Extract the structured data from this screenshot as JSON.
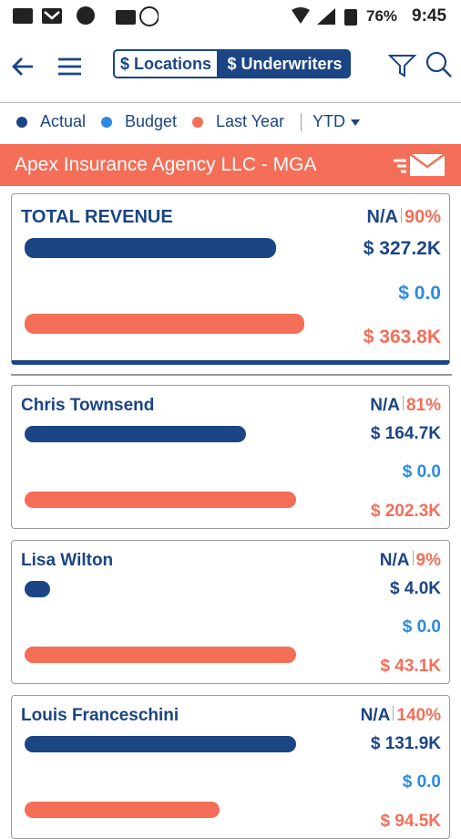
{
  "status_bar": {
    "battery": "76%",
    "time": "9:45"
  },
  "header": {
    "tabs": [
      "$ Locations",
      "$ Underwriters"
    ]
  },
  "legend": {
    "items": [
      "Actual",
      "Budget",
      "Last Year"
    ],
    "period": "YTD"
  },
  "banner": {
    "title": "Apex Insurance Agency LLC - MGA"
  },
  "total": {
    "title": "TOTAL REVENUE",
    "budget_ratio": "N/A",
    "ratio": "90%",
    "values": [
      327.2,
      0,
      363.8
    ],
    "value_labels": [
      "$ 327.2K",
      "$ 0.0",
      "$ 363.8K"
    ]
  },
  "underwriters": [
    {
      "title": "Chris Townsend",
      "budget_ratio": "N/A",
      "ratio": "81%",
      "values": [
        164.7,
        0,
        202.3
      ],
      "value_labels": [
        "$ 164.7K",
        "$ 0.0",
        "$ 202.3K"
      ]
    },
    {
      "title": "Lisa Wilton",
      "budget_ratio": "N/A",
      "ratio": "9%",
      "values": [
        4.0,
        0,
        43.1
      ],
      "value_labels": [
        "$ 4.0K",
        "$ 0.0",
        "$ 43.1K"
      ]
    },
    {
      "title": "Louis Franceschini",
      "budget_ratio": "N/A",
      "ratio": "140%",
      "values": [
        131.9,
        0,
        94.5
      ],
      "value_labels": [
        "$ 131.9K",
        "$ 0.0",
        "$ 94.5K"
      ]
    }
  ]
}
